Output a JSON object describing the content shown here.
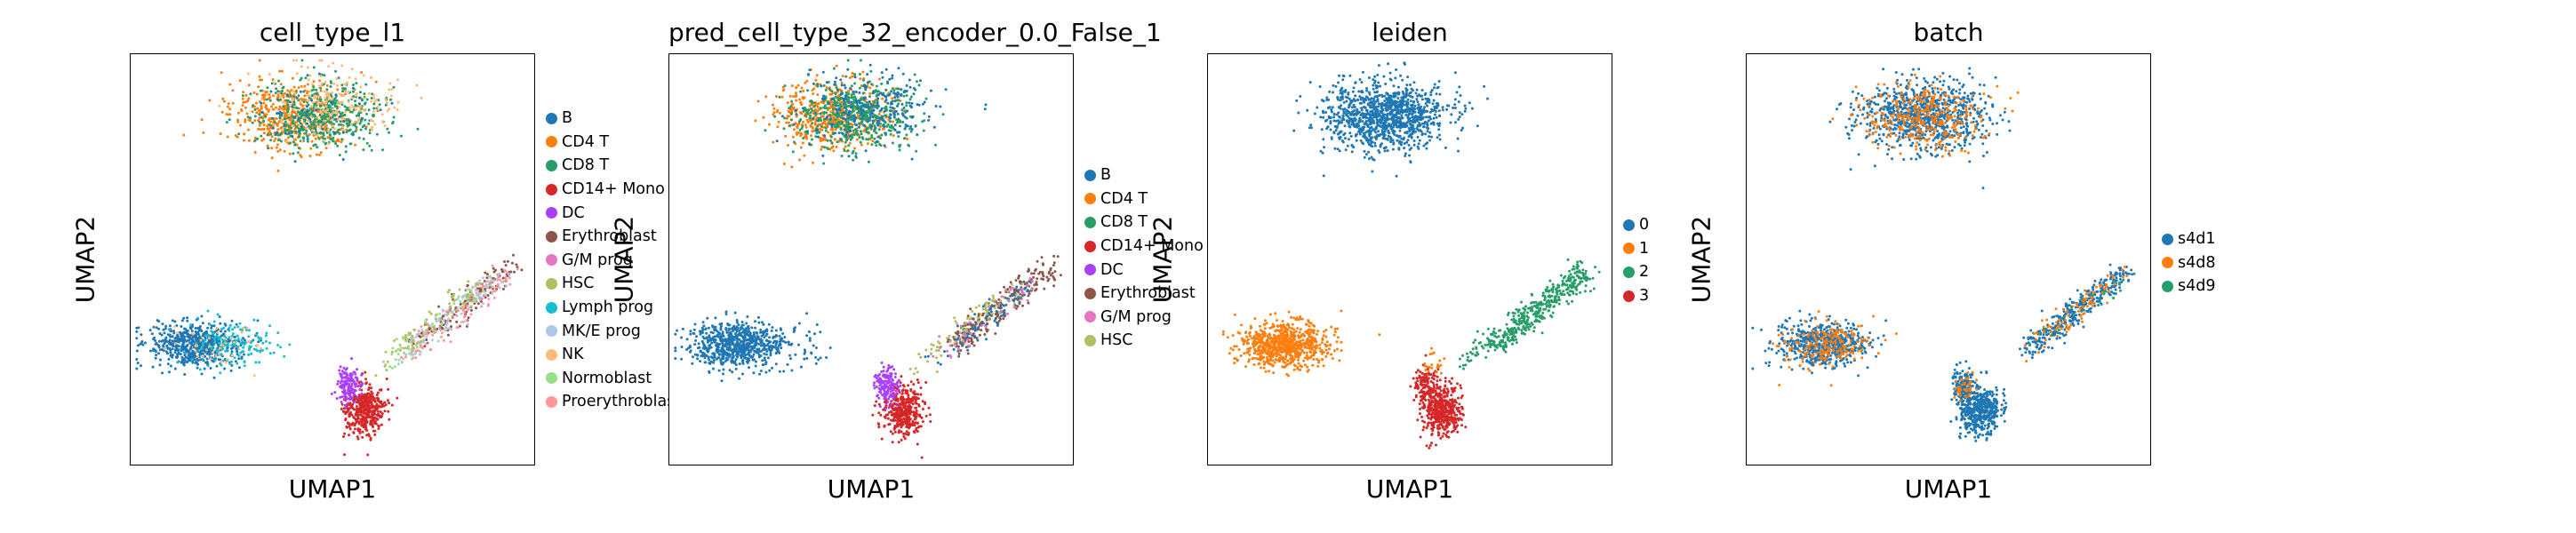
{
  "chart_data": [
    {
      "type": "scatter",
      "title": "cell_type_l1",
      "xlabel": "UMAP1",
      "ylabel": "UMAP2",
      "grid": false,
      "legend_placement": "right",
      "legend": [
        {
          "name": "B",
          "color": "#1f77b4"
        },
        {
          "name": "CD4 T",
          "color": "#ff7f0e"
        },
        {
          "name": "CD8 T",
          "color": "#279e68"
        },
        {
          "name": "CD14+ Mono",
          "color": "#d62728"
        },
        {
          "name": "DC",
          "color": "#aa40fc"
        },
        {
          "name": "Erythroblast",
          "color": "#8c564b"
        },
        {
          "name": "G/M prog",
          "color": "#e377c2"
        },
        {
          "name": "HSC",
          "color": "#b5bd61"
        },
        {
          "name": "Lymph prog",
          "color": "#17becf"
        },
        {
          "name": "MK/E prog",
          "color": "#aec7e8"
        },
        {
          "name": "NK",
          "color": "#ffbb78"
        },
        {
          "name": "Normoblast",
          "color": "#98df8a"
        },
        {
          "name": "Proerythroblast",
          "color": "#ff9896"
        }
      ]
    },
    {
      "type": "scatter",
      "title": "pred_cell_type_32_encoder_0.0_False_1",
      "xlabel": "UMAP1",
      "ylabel": "UMAP2",
      "grid": false,
      "legend_placement": "right",
      "legend": [
        {
          "name": "B",
          "color": "#1f77b4"
        },
        {
          "name": "CD4 T",
          "color": "#ff7f0e"
        },
        {
          "name": "CD8 T",
          "color": "#279e68"
        },
        {
          "name": "CD14+ Mono",
          "color": "#d62728"
        },
        {
          "name": "DC",
          "color": "#aa40fc"
        },
        {
          "name": "Erythroblast",
          "color": "#8c564b"
        },
        {
          "name": "G/M prog",
          "color": "#e377c2"
        },
        {
          "name": "HSC",
          "color": "#b5bd61"
        }
      ]
    },
    {
      "type": "scatter",
      "title": "leiden",
      "xlabel": "UMAP1",
      "ylabel": "UMAP2",
      "grid": false,
      "legend_placement": "right",
      "legend": [
        {
          "name": "0",
          "color": "#1f77b4"
        },
        {
          "name": "1",
          "color": "#ff7f0e"
        },
        {
          "name": "2",
          "color": "#279e68"
        },
        {
          "name": "3",
          "color": "#d62728"
        }
      ]
    },
    {
      "type": "scatter",
      "title": "batch",
      "xlabel": "UMAP1",
      "ylabel": "UMAP2",
      "grid": false,
      "legend_placement": "right",
      "legend": [
        {
          "name": "s4d1",
          "color": "#1f77b4"
        },
        {
          "name": "s4d8",
          "color": "#ff7f0e"
        },
        {
          "name": "s4d9",
          "color": "#279e68"
        }
      ]
    }
  ]
}
